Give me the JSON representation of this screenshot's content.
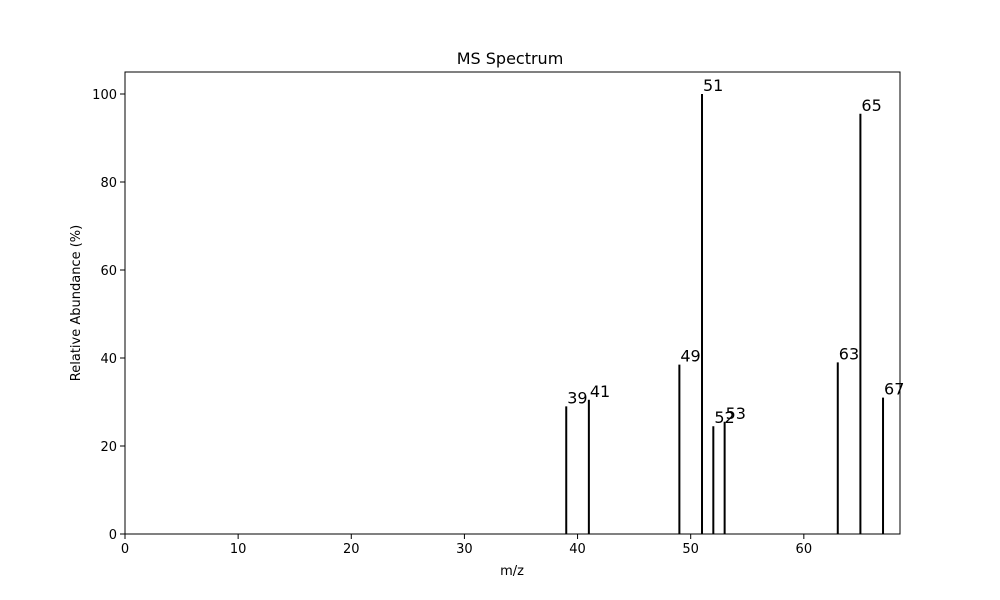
{
  "chart_data": {
    "type": "bar",
    "title": "MS Spectrum",
    "xlabel": "m/z",
    "ylabel": "Relative Abundance (%)",
    "xlim": [
      0,
      68.5
    ],
    "ylim": [
      0,
      105
    ],
    "xticks": [
      0,
      10,
      20,
      30,
      40,
      50,
      60
    ],
    "yticks": [
      0,
      20,
      40,
      60,
      80,
      100
    ],
    "grid": false,
    "line_color": "#000000",
    "peaks": [
      {
        "mz": 39,
        "abundance": 29,
        "label": "39"
      },
      {
        "mz": 41,
        "abundance": 30.5,
        "label": "41"
      },
      {
        "mz": 49,
        "abundance": 38.5,
        "label": "49"
      },
      {
        "mz": 51,
        "abundance": 100,
        "label": "51"
      },
      {
        "mz": 52,
        "abundance": 24.5,
        "label": "52"
      },
      {
        "mz": 53,
        "abundance": 25.5,
        "label": "53"
      },
      {
        "mz": 63,
        "abundance": 39,
        "label": "63"
      },
      {
        "mz": 65,
        "abundance": 95.5,
        "label": "65"
      },
      {
        "mz": 67,
        "abundance": 31,
        "label": "67"
      }
    ]
  }
}
